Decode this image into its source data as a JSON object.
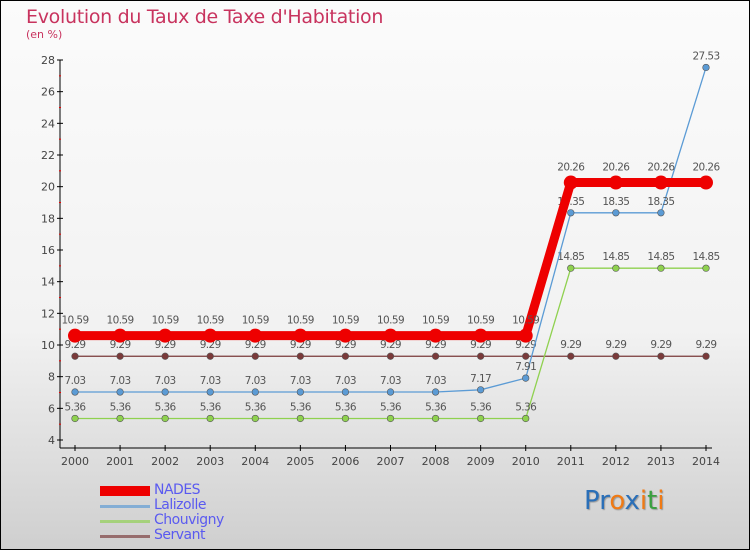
{
  "chart_data": {
    "type": "line",
    "title": "Evolution du Taux de Taxe d'Habitation",
    "subtitle": "(en %)",
    "xlabel": "",
    "ylabel": "",
    "ylim": [
      4,
      28
    ],
    "yticks": [
      "4",
      "6",
      "8",
      "10",
      "12",
      "14",
      "16",
      "18",
      "20",
      "22",
      "24",
      "26",
      "28"
    ],
    "x": [
      "2000",
      "2001",
      "2002",
      "2003",
      "2004",
      "2005",
      "2006",
      "2007",
      "2008",
      "2009",
      "2010",
      "2011",
      "2012",
      "2013",
      "2014"
    ],
    "legend_position": "bottom-left",
    "series": [
      {
        "name": "NADES",
        "color": "#ee0000",
        "values": [
          10.59,
          10.59,
          10.59,
          10.59,
          10.59,
          10.59,
          10.59,
          10.59,
          10.59,
          10.59,
          10.59,
          20.26,
          20.26,
          20.26,
          20.26
        ]
      },
      {
        "name": "Lalizolle",
        "color": "#5b9bd5",
        "values": [
          7.03,
          7.03,
          7.03,
          7.03,
          7.03,
          7.03,
          7.03,
          7.03,
          7.03,
          7.17,
          7.91,
          18.35,
          18.35,
          18.35,
          27.53
        ]
      },
      {
        "name": "Chouvigny",
        "color": "#8fd14f",
        "values": [
          5.36,
          5.36,
          5.36,
          5.36,
          5.36,
          5.36,
          5.36,
          5.36,
          5.36,
          5.36,
          5.36,
          14.85,
          14.85,
          14.85,
          14.85
        ]
      },
      {
        "name": "Servant",
        "color": "#7a3a3a",
        "values": [
          9.29,
          9.29,
          9.29,
          9.29,
          9.29,
          9.29,
          9.29,
          9.29,
          9.29,
          9.29,
          9.29,
          9.29,
          9.29,
          9.29,
          9.29
        ]
      }
    ]
  },
  "logo": {
    "text": "Proxiti"
  }
}
